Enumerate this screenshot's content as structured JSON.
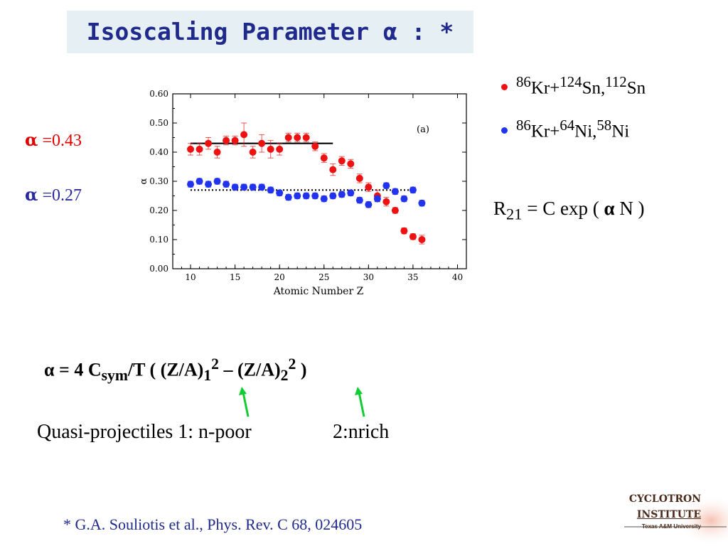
{
  "slide": {
    "title": "Isoscaling Parameter α : *",
    "alpha_red": {
      "symbol": "α",
      "value": "=0.43"
    },
    "alpha_blue": {
      "symbol": "α",
      "value": "=0.27"
    },
    "formula_r": {
      "lhs": "R",
      "lhs_sub": "21",
      "rest": " = C exp ( ",
      "alpha": "α",
      "tail": " N )"
    },
    "formula_alpha": {
      "lead": "α  = 4 C",
      "sub1": "sym",
      "mid1": "/T  (  (Z/A)",
      "sub2": "1",
      "sup2": "2",
      "minus": " – ",
      "mid2": " (Z/A)",
      "sub3": "2",
      "sup3": "2",
      "end": "  )"
    },
    "qp_label": "Quasi-projectiles  1: n-poor",
    "qp_label2": "2:nrich",
    "reference": "* G.A. Souliotis et al.,  Phys. Rev. C 68, 024605",
    "logo": {
      "line1": "CYCLOTRON",
      "line2": "INSTITUTE",
      "line3": "Texas A&M University"
    }
  },
  "legend": [
    {
      "sup1": "86",
      "t1": "Kr+",
      "sup2": "124",
      "t2": "Sn,",
      "sup3": "112",
      "t3": "Sn",
      "color": "#ee1111"
    },
    {
      "sup1": "86",
      "t1": "Kr+",
      "sup2": "64",
      "t2": "Ni,",
      "sup3": "58",
      "t3": "Ni",
      "color": "#2233ee"
    }
  ],
  "chart_data": {
    "type": "scatter",
    "panel_label": "(a)",
    "xlabel": "Atomic Number Z",
    "ylabel": "α",
    "xlim": [
      8,
      41
    ],
    "ylim": [
      0.0,
      0.6
    ],
    "xticks": [
      10,
      15,
      20,
      25,
      30,
      35,
      40
    ],
    "yticks": [
      "0.00",
      "0.10",
      "0.20",
      "0.30",
      "0.40",
      "0.50",
      "0.60"
    ],
    "series": [
      {
        "color": "#ee1111",
        "x": [
          10,
          11,
          12,
          13,
          14,
          15,
          16,
          17,
          18,
          19,
          20,
          21,
          22,
          23,
          24,
          25,
          26,
          27,
          28,
          29,
          30,
          31,
          32,
          33,
          34,
          35,
          36
        ],
        "y": [
          0.41,
          0.41,
          0.43,
          0.4,
          0.44,
          0.44,
          0.46,
          0.4,
          0.43,
          0.41,
          0.41,
          0.45,
          0.45,
          0.45,
          0.42,
          0.38,
          0.34,
          0.37,
          0.36,
          0.31,
          0.28,
          0.25,
          0.23,
          0.2,
          0.13,
          0.11,
          0.1
        ],
        "err": [
          0.02,
          0.02,
          0.02,
          0.02,
          0.015,
          0.015,
          0.04,
          0.02,
          0.03,
          0.03,
          0.02,
          0.015,
          0.015,
          0.015,
          0.015,
          0.015,
          0.02,
          0.015,
          0.015,
          0.015,
          0.015,
          0.02,
          0.015,
          0.01,
          0.01,
          0.01,
          0.015
        ]
      },
      {
        "color": "#2233ee",
        "x": [
          10,
          11,
          12,
          13,
          14,
          15,
          16,
          17,
          18,
          19,
          20,
          21,
          22,
          23,
          24,
          25,
          26,
          27,
          28,
          29,
          30,
          31,
          32,
          33,
          34,
          35,
          36
        ],
        "y": [
          0.29,
          0.3,
          0.29,
          0.3,
          0.29,
          0.28,
          0.28,
          0.28,
          0.28,
          0.27,
          0.26,
          0.245,
          0.25,
          0.25,
          0.25,
          0.24,
          0.25,
          0.255,
          0.26,
          0.235,
          0.22,
          0.24,
          0.285,
          0.265,
          0.24,
          0.27,
          0.225
        ],
        "err": [
          0.01,
          0.01,
          0.01,
          0.01,
          0.01,
          0.01,
          0.01,
          0.01,
          0.01,
          0.01,
          0.01,
          0.01,
          0.01,
          0.01,
          0.01,
          0.01,
          0.01,
          0.01,
          0.01,
          0.01,
          0.01,
          0.01,
          0.01,
          0.01,
          0.01,
          0.01,
          0.01
        ]
      }
    ],
    "fit_lines": [
      {
        "style": "solid",
        "x": [
          10,
          26
        ],
        "y": 0.43
      },
      {
        "style": "dotted",
        "x": [
          10,
          35
        ],
        "y": 0.27
      }
    ]
  }
}
